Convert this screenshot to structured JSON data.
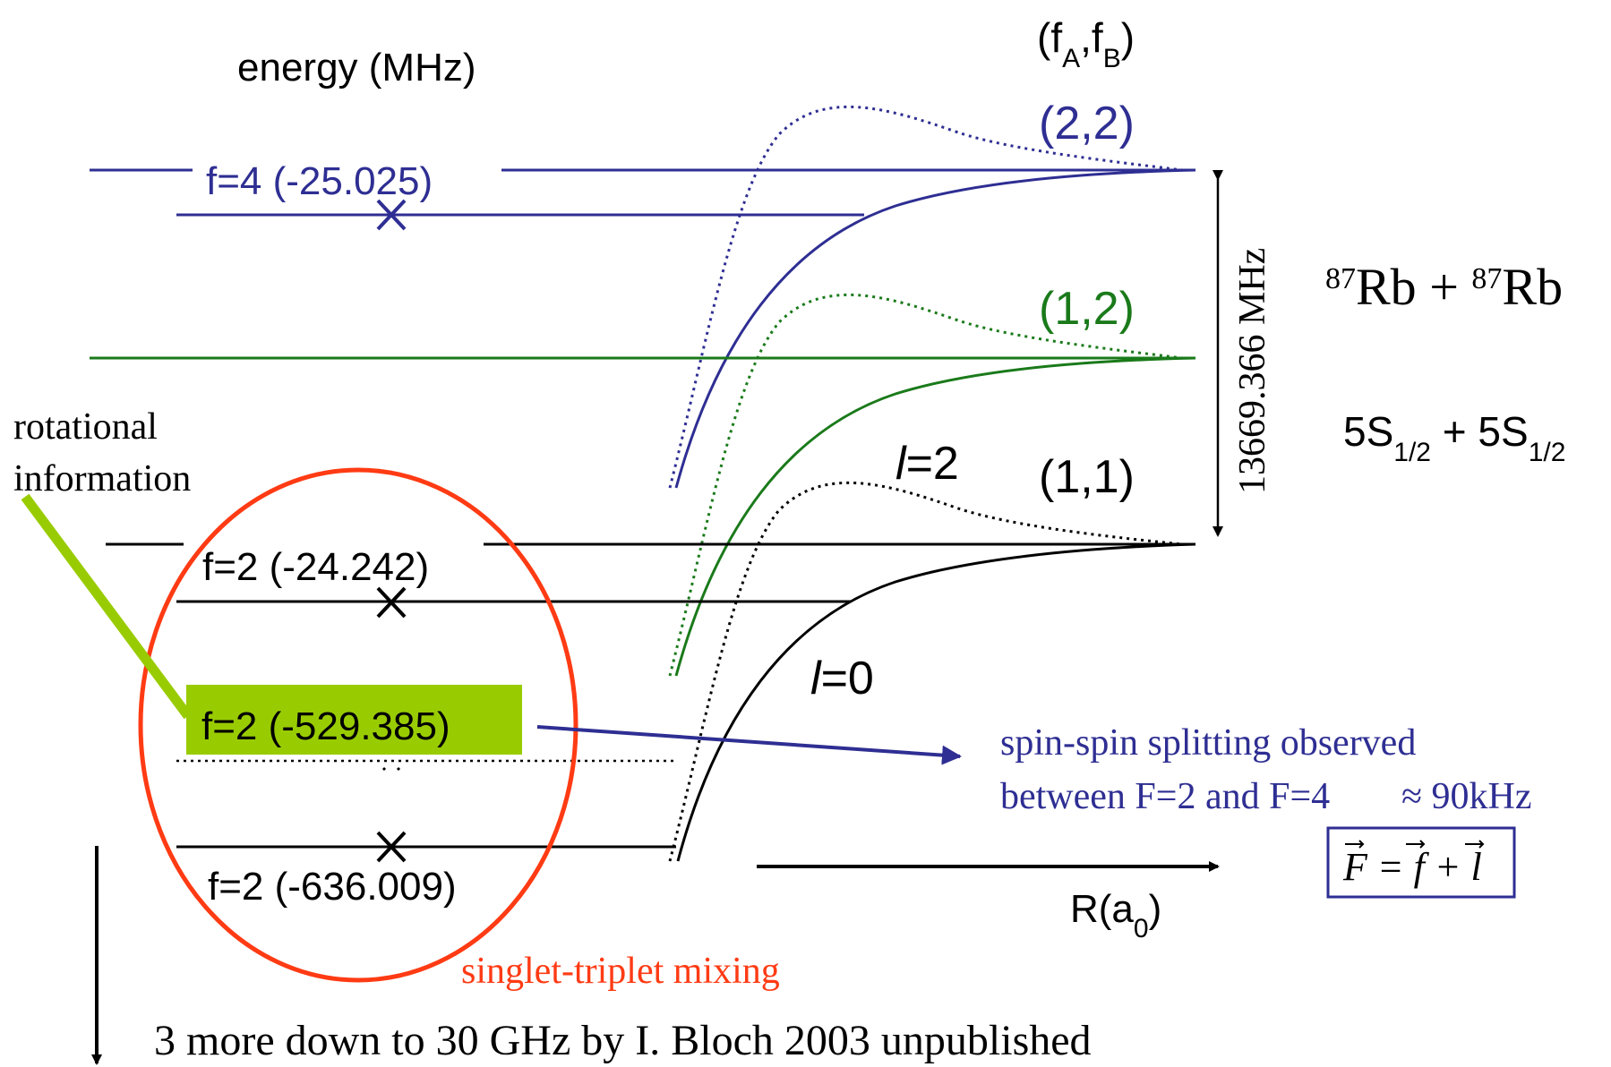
{
  "colors": {
    "blue": "#2e2e93",
    "green": "#1a7a1a",
    "black": "#000000",
    "red": "#ff3b14",
    "highlight_green": "#99cc00"
  },
  "header": {
    "energy_axis_label": "energy (MHz)",
    "channel_label_f": "(f",
    "channel_label_a": "A",
    "channel_label_comma": ",f",
    "channel_label_b": "B",
    "channel_label_close": ")"
  },
  "channels": [
    {
      "label": "(2,2)",
      "color": "blue"
    },
    {
      "label": "(1,2)",
      "color": "green"
    },
    {
      "label": "(1,1)",
      "color": "black"
    }
  ],
  "levels": {
    "upper": "f=4 (-25.025)",
    "lower_1": "f=2 (-24.242)",
    "lower_2": "f=2 (-529.385)",
    "lower_3": "f=2 (-636.009)"
  },
  "curve_labels": {
    "l2_letter": "l",
    "l2_value": "=2",
    "l0_letter": "l",
    "l0_value": "=0"
  },
  "splitting": "13669.366 MHz",
  "atoms": {
    "iso_sup": "87",
    "element": "Rb",
    "plus": " + ",
    "state_main": "5S",
    "state_sub": "1/2",
    "state_plus": " + "
  },
  "annotations": {
    "rotational_line1": "rotational",
    "rotational_line2": "information",
    "spin_line1": "spin-spin splitting observed",
    "spin_line2": "between F=2 and F=4",
    "spin_value": "≈ 90kHz",
    "formula": "F = f + l",
    "singlet_triplet": "singlet-triplet mixing",
    "more_down": "3 more down to 30 GHz by I. Bloch 2003 unpublished"
  },
  "r_axis": {
    "label_main": "R(a",
    "label_sub": "0",
    "label_close": ")"
  }
}
